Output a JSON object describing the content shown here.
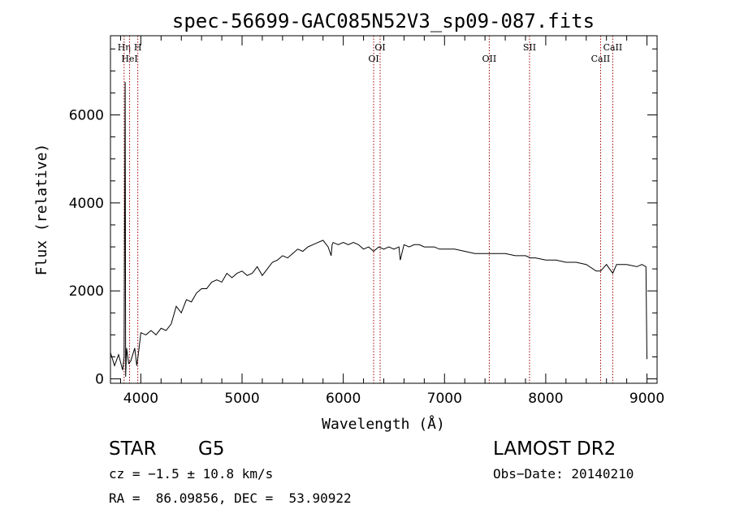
{
  "chart_data": {
    "type": "line",
    "title": "spec-56699-GAC085N52V3_sp09-087.fits",
    "xlabel": "Wavelength (Å)",
    "ylabel": "Flux (relative)",
    "xlim": [
      3700,
      9100
    ],
    "ylim": [
      -100,
      7800
    ],
    "xticks": [
      4000,
      5000,
      6000,
      7000,
      8000,
      9000
    ],
    "yticks": [
      0,
      2000,
      4000,
      6000
    ],
    "grid": false,
    "series": [
      {
        "x": [
          3700,
          3740,
          3780,
          3820,
          3835,
          3845,
          3850,
          3860,
          3880,
          3900,
          3920,
          3940,
          3960,
          3980,
          4000,
          4050,
          4100,
          4150,
          4200,
          4250,
          4300,
          4350,
          4400,
          4450,
          4500,
          4550,
          4600,
          4650,
          4700,
          4750,
          4800,
          4850,
          4900,
          4950,
          5000,
          5050,
          5100,
          5150,
          5200,
          5250,
          5300,
          5350,
          5400,
          5450,
          5500,
          5550,
          5600,
          5650,
          5700,
          5750,
          5800,
          5850,
          5880,
          5890,
          5900,
          5950,
          6000,
          6050,
          6100,
          6150,
          6200,
          6250,
          6300,
          6350,
          6400,
          6450,
          6500,
          6550,
          6563,
          6600,
          6650,
          6700,
          6750,
          6800,
          6850,
          6900,
          6950,
          7000,
          7100,
          7200,
          7300,
          7400,
          7500,
          7600,
          7700,
          7800,
          7850,
          7900,
          8000,
          8100,
          8200,
          8300,
          8400,
          8498,
          8542,
          8600,
          8662,
          8700,
          8800,
          8900,
          8950,
          8990,
          9000
        ],
        "y": [
          600,
          300,
          550,
          200,
          500,
          6750,
          50,
          700,
          350,
          400,
          550,
          700,
          300,
          650,
          1050,
          1000,
          1100,
          1000,
          1150,
          1100,
          1250,
          1650,
          1500,
          1800,
          1750,
          1950,
          2050,
          2050,
          2200,
          2250,
          2200,
          2400,
          2300,
          2400,
          2450,
          2350,
          2400,
          2550,
          2350,
          2500,
          2650,
          2700,
          2800,
          2750,
          2850,
          2950,
          2900,
          3000,
          3050,
          3100,
          3150,
          3000,
          2800,
          3050,
          3100,
          3050,
          3100,
          3050,
          3100,
          3050,
          2950,
          3000,
          2900,
          3000,
          2950,
          3000,
          2950,
          3000,
          2700,
          3050,
          3000,
          3050,
          3050,
          3000,
          3000,
          3000,
          2950,
          2950,
          2950,
          2900,
          2850,
          2850,
          2850,
          2850,
          2800,
          2800,
          2750,
          2750,
          2700,
          2700,
          2650,
          2650,
          2600,
          2450,
          2450,
          2600,
          2400,
          2600,
          2600,
          2550,
          2600,
          2550,
          450
        ]
      }
    ],
    "lines": [
      {
        "x": 3835,
        "label": "Hη"
      },
      {
        "x": 3889,
        "label": "HeI"
      },
      {
        "x": 3970,
        "label": "H"
      },
      {
        "x": 6300,
        "label": "OI"
      },
      {
        "x": 6364,
        "label": "OI"
      },
      {
        "x": 7442,
        "label": "OII"
      },
      {
        "x": 7840,
        "label": "SII"
      },
      {
        "x": 8542,
        "label": "CaII"
      },
      {
        "x": 8662,
        "label": "CaII"
      }
    ]
  },
  "info": {
    "class": "STAR",
    "subclass": "G5",
    "survey": "LAMOST DR2",
    "cz": "cz = −1.5 ± 10.8 km/s",
    "obs_date": "Obs−Date: 20140210",
    "radec": "RA =  86.09856, DEC =  53.90922"
  }
}
